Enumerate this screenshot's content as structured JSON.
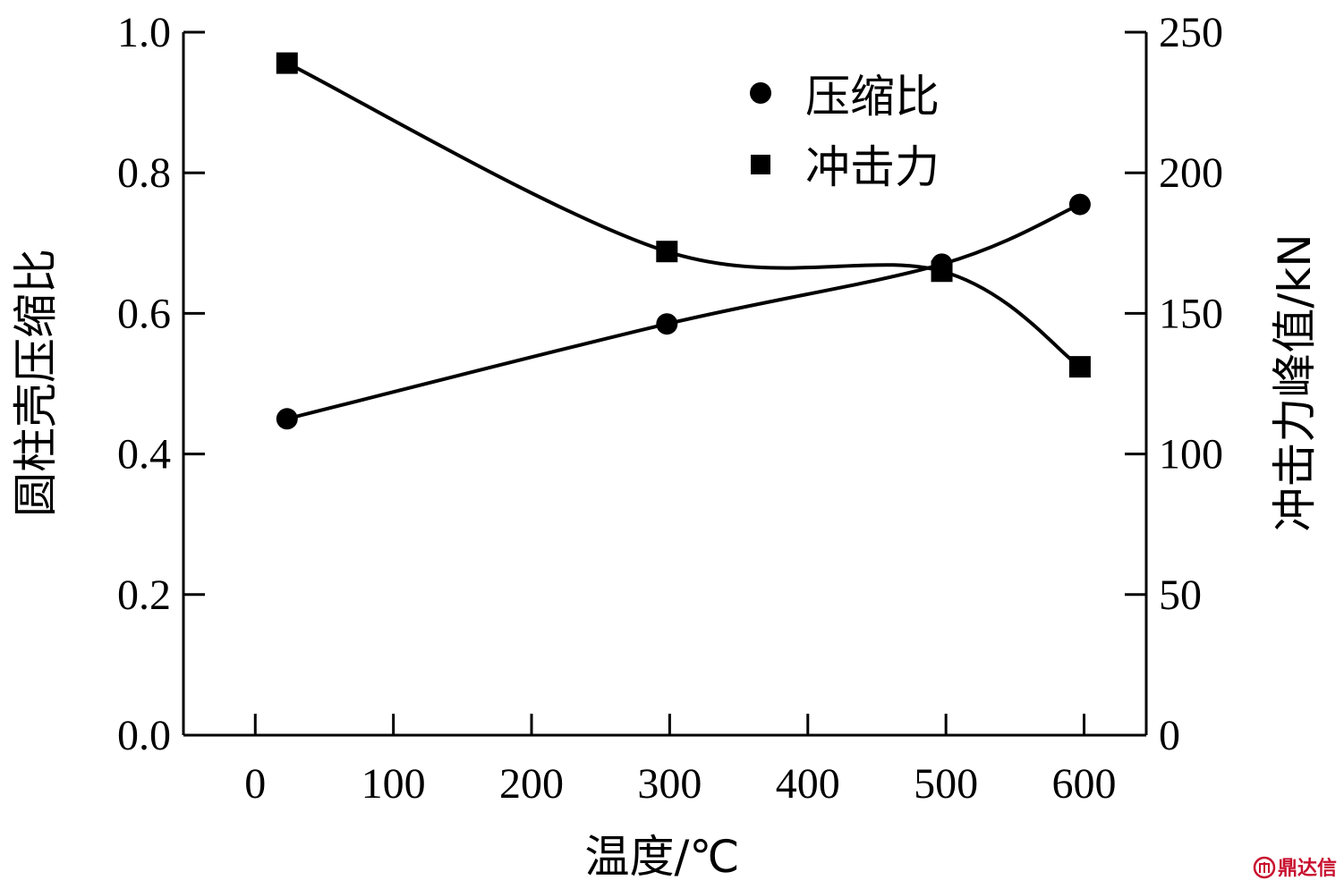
{
  "chart_data": {
    "type": "line",
    "xlabel": "温度/℃",
    "ylabel_left": "圆柱壳压缩比",
    "ylabel_right": "冲击力峰值/kN",
    "x_ticks": [
      "0",
      "100",
      "200",
      "300",
      "400",
      "500",
      "600"
    ],
    "y_left_ticks": [
      "0.0",
      "0.2",
      "0.4",
      "0.6",
      "0.8",
      "1.0"
    ],
    "y_right_ticks": [
      "0",
      "50",
      "100",
      "150",
      "200",
      "250"
    ],
    "xlim": [
      -52,
      645
    ],
    "ylim_left": [
      0,
      1.0
    ],
    "ylim_right": [
      0,
      250
    ],
    "legend_position": "top-right",
    "grid": false,
    "series": [
      {
        "name": "压缩比",
        "axis": "left",
        "marker": "circle",
        "x": [
          23,
          298,
          497,
          597
        ],
        "values": [
          0.45,
          0.585,
          0.67,
          0.755
        ]
      },
      {
        "name": "冲击力",
        "axis": "right",
        "marker": "square",
        "x": [
          23,
          298,
          497,
          597
        ],
        "values": [
          239,
          172,
          165,
          131
        ]
      }
    ]
  },
  "watermark": {
    "text": "鼎达信",
    "color": "#c8102e"
  }
}
